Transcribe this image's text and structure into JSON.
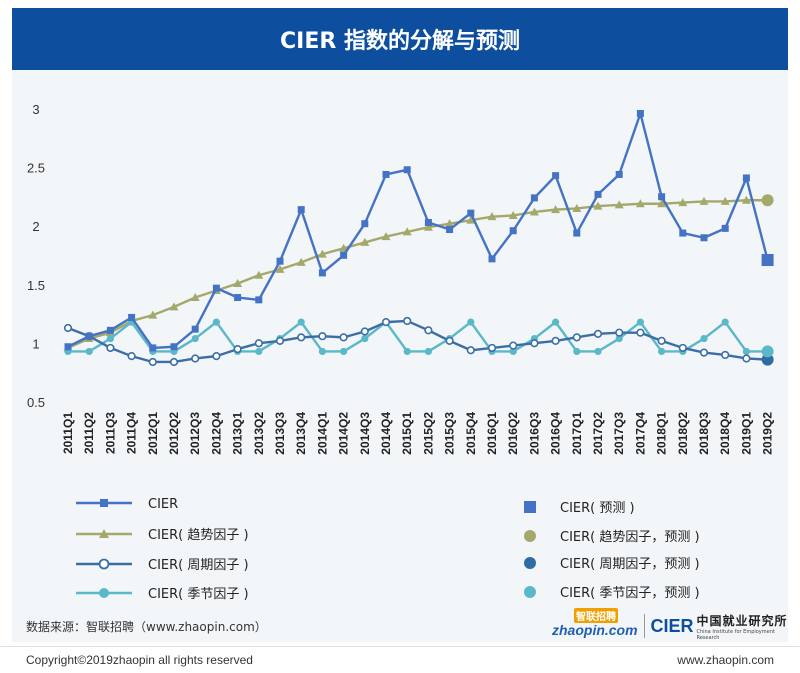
{
  "header": {
    "title": "CIER 指数的分解与预测"
  },
  "chart_data": {
    "type": "line",
    "x": [
      "2011Q1",
      "2011Q2",
      "2011Q3",
      "2011Q4",
      "2012Q1",
      "2012Q2",
      "2012Q3",
      "2012Q4",
      "2013Q1",
      "2013Q2",
      "2013Q3",
      "2013Q4",
      "2014Q1",
      "2014Q2",
      "2014Q3",
      "2014Q4",
      "2015Q1",
      "2015Q2",
      "2015Q3",
      "2015Q4",
      "2016Q1",
      "2016Q2",
      "2016Q3",
      "2016Q4",
      "2017Q1",
      "2017Q2",
      "2017Q3",
      "2017Q4",
      "2018Q1",
      "2018Q2",
      "2018Q3",
      "2018Q4",
      "2019Q1",
      "2019Q2"
    ],
    "ylim": [
      0.5,
      3
    ],
    "yticks": [
      0.5,
      1,
      1.5,
      2,
      2.5,
      3
    ],
    "ytick_labels": [
      "0.5",
      "1",
      "1.5",
      "2",
      "2.5",
      "3"
    ],
    "grid": false,
    "series": [
      {
        "name": "CIER",
        "color": "#4472c4",
        "marker": "square",
        "values": [
          0.98,
          1.07,
          1.12,
          1.23,
          0.97,
          0.98,
          1.13,
          1.48,
          1.4,
          1.38,
          1.71,
          2.15,
          1.61,
          1.76,
          2.03,
          2.45,
          2.49,
          2.04,
          1.98,
          2.12,
          1.73,
          1.97,
          2.25,
          2.44,
          1.95,
          2.28,
          2.45,
          2.97,
          2.26,
          1.95,
          1.91,
          1.99,
          2.42,
          1.72
        ]
      },
      {
        "name": "CIER( 趋势因子 )",
        "color": "#a5a86b",
        "marker": "triangle",
        "values": [
          0.97,
          1.05,
          1.1,
          1.2,
          1.25,
          1.32,
          1.4,
          1.46,
          1.52,
          1.59,
          1.64,
          1.7,
          1.77,
          1.82,
          1.87,
          1.92,
          1.96,
          2.0,
          2.03,
          2.06,
          2.09,
          2.1,
          2.13,
          2.15,
          2.16,
          2.18,
          2.19,
          2.2,
          2.2,
          2.21,
          2.22,
          2.22,
          2.23,
          2.23
        ]
      },
      {
        "name": "CIER( 周期因子 )",
        "color": "#3a6ea5",
        "marker": "circle-open",
        "values": [
          1.14,
          1.07,
          0.97,
          0.9,
          0.85,
          0.85,
          0.88,
          0.9,
          0.96,
          1.01,
          1.03,
          1.06,
          1.07,
          1.06,
          1.11,
          1.19,
          1.2,
          1.12,
          1.03,
          0.95,
          0.97,
          0.99,
          1.01,
          1.03,
          1.06,
          1.09,
          1.1,
          1.1,
          1.03,
          0.97,
          0.93,
          0.91,
          0.88,
          0.87
        ]
      },
      {
        "name": "CIER( 季节因子 )",
        "color": "#5bb8c9",
        "marker": "circle",
        "values": [
          0.94,
          0.94,
          1.05,
          1.19,
          0.94,
          0.94,
          1.05,
          1.19,
          0.94,
          0.94,
          1.05,
          1.19,
          0.94,
          0.94,
          1.05,
          1.19,
          0.94,
          0.94,
          1.05,
          1.19,
          0.94,
          0.94,
          1.05,
          1.19,
          0.94,
          0.94,
          1.05,
          1.19,
          0.94,
          0.94,
          1.05,
          1.19,
          0.94,
          0.94
        ]
      }
    ],
    "predictions": [
      {
        "name": "CIER( 预测 )",
        "color": "#4472c4",
        "marker": "square",
        "x": "2019Q2",
        "value": 1.72
      },
      {
        "name": "CIER( 趋势因子，预测 )",
        "color": "#a5a86b",
        "marker": "circle",
        "x": "2019Q2",
        "value": 2.23
      },
      {
        "name": "CIER( 周期因子，预测 )",
        "color": "#2e6da4",
        "marker": "circle",
        "x": "2019Q2",
        "value": 0.87
      },
      {
        "name": "CIER( 季节因子，预测 )",
        "color": "#5bb8c9",
        "marker": "circle",
        "x": "2019Q2",
        "value": 0.94
      }
    ]
  },
  "footer": {
    "source": "数据来源：智联招聘（www.zhaopin.com）",
    "copyright": "Copyright©2019zhaopin all rights reserved",
    "site_url": "www.zhaopin.com",
    "logo_zhaopin": "zhaopin.com",
    "logo_zhaopin_cn": "智联招聘",
    "logo_cier": "CIER",
    "logo_cier_cn": "中国就业研究所",
    "logo_cier_en": "China Institute for Employment Research"
  }
}
